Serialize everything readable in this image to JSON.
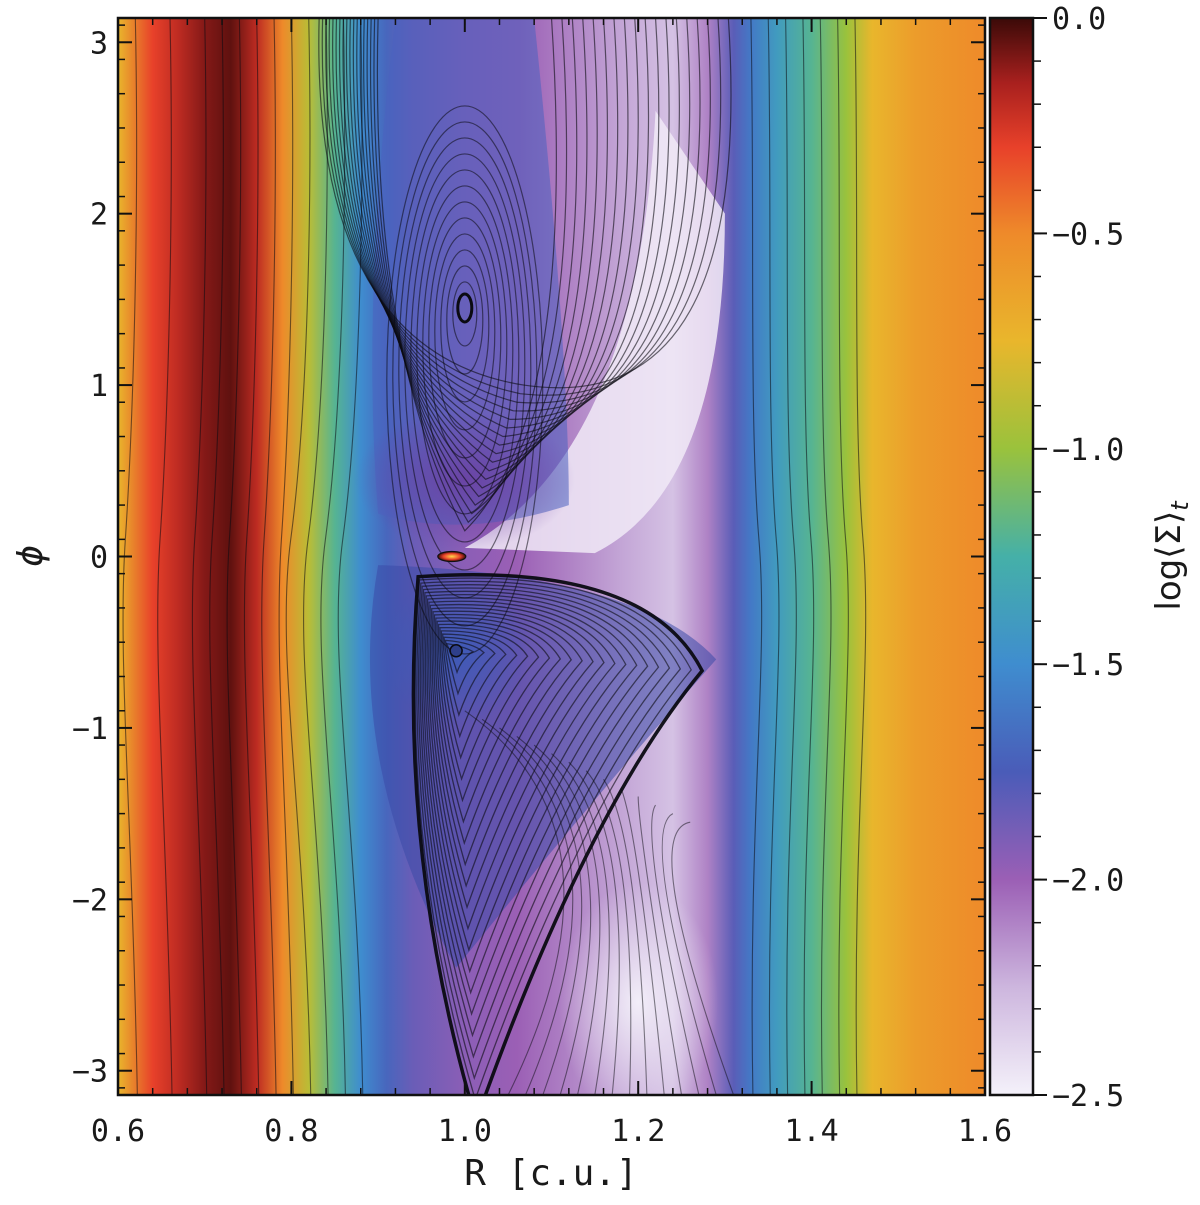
{
  "chart_data": {
    "type": "heatmap",
    "title": "",
    "xlabel": "R [c.u.]",
    "ylabel": "ϕ",
    "xlim": [
      0.6,
      1.6
    ],
    "ylim": [
      -3.14159,
      3.14159
    ],
    "x_ticks": [
      0.6,
      0.8,
      1.0,
      1.2,
      1.4,
      1.6
    ],
    "x_tick_labels": [
      "0.6",
      "0.8",
      "1.0",
      "1.2",
      "1.4",
      "1.6"
    ],
    "y_ticks": [
      -3,
      -2,
      -1,
      0,
      1,
      2,
      3
    ],
    "y_tick_labels": [
      "−3",
      "−2",
      "−1",
      "0",
      "1",
      "2",
      "3"
    ],
    "grid": false,
    "overlay": "streamlines",
    "colorbar": {
      "label": "log⟨Σ⟩",
      "label_subscript": "t",
      "range": [
        -2.5,
        0.0
      ],
      "ticks": [
        0.0,
        -0.5,
        -1.0,
        -1.5,
        -2.0,
        -2.5
      ],
      "tick_labels": [
        "0.0",
        "−0.5",
        "−1.0",
        "−1.5",
        "−2.0",
        "−2.5"
      ],
      "placement": "right",
      "colormap_stops": [
        {
          "value": -2.5,
          "color": "#f4f1fa"
        },
        {
          "value": -2.25,
          "color": "#cdb6de"
        },
        {
          "value": -2.0,
          "color": "#9b5fb5"
        },
        {
          "value": -1.75,
          "color": "#4a5cb8"
        },
        {
          "value": -1.5,
          "color": "#3f8dcf"
        },
        {
          "value": -1.25,
          "color": "#45b0a8"
        },
        {
          "value": -1.0,
          "color": "#9ac23c"
        },
        {
          "value": -0.75,
          "color": "#e9b62c"
        },
        {
          "value": -0.5,
          "color": "#ee8a2a"
        },
        {
          "value": -0.3,
          "color": "#e8412a"
        },
        {
          "value": -0.15,
          "color": "#a8201e"
        },
        {
          "value": 0.0,
          "color": "#3b0a08"
        }
      ]
    },
    "radial_profile": {
      "R": [
        0.6,
        0.64,
        0.67,
        0.7,
        0.73,
        0.76,
        0.79,
        0.82,
        0.85,
        0.88,
        0.91,
        0.94,
        1.0,
        1.06,
        1.12,
        1.18,
        1.24,
        1.28,
        1.31,
        1.33,
        1.36,
        1.4,
        1.44,
        1.47,
        1.52,
        1.6
      ],
      "log_sigma": [
        -0.75,
        -0.3,
        -0.2,
        -0.1,
        -0.05,
        -0.2,
        -0.5,
        -0.9,
        -1.2,
        -1.5,
        -1.7,
        -1.85,
        -1.95,
        -2.0,
        -2.1,
        -2.2,
        -2.3,
        -2.1,
        -1.8,
        -1.6,
        -1.4,
        -1.2,
        -1.0,
        -0.75,
        -0.6,
        -0.5
      ]
    },
    "features": [
      {
        "type": "elliptic_point",
        "R": 1.0,
        "phi": 1.45
      },
      {
        "type": "vortex_center",
        "R": 0.99,
        "phi": -0.55
      },
      {
        "type": "planet",
        "R": 0.985,
        "phi": 0.0
      }
    ]
  }
}
